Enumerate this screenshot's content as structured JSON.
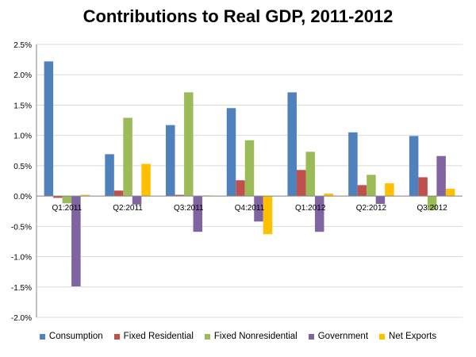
{
  "chart_data": {
    "type": "bar",
    "title": "Contributions to Real GDP, 2011-2012",
    "categories": [
      "Q1:2011",
      "Q2:2011",
      "Q3:2011",
      "Q4:2011",
      "Q1:2012",
      "Q2:2012",
      "Q3:2012"
    ],
    "series": [
      {
        "name": "Consumption",
        "color": "#4F81BD",
        "values": [
          2.22,
          0.69,
          1.17,
          1.45,
          1.71,
          1.05,
          0.99
        ]
      },
      {
        "name": "Fixed Residential",
        "color": "#C0504D",
        "values": [
          -0.03,
          0.09,
          0.02,
          0.26,
          0.43,
          0.18,
          0.31
        ]
      },
      {
        "name": "Fixed Nonresidential",
        "color": "#9BBB59",
        "values": [
          -0.12,
          1.29,
          1.71,
          0.92,
          0.73,
          0.35,
          -0.23
        ]
      },
      {
        "name": "Government",
        "color": "#8064A2",
        "values": [
          -1.49,
          -0.14,
          -0.59,
          -0.42,
          -0.59,
          -0.13,
          0.66
        ]
      },
      {
        "name": "Net Exports",
        "color": "#FFC000",
        "values": [
          0.02,
          0.53,
          0.01,
          -0.63,
          0.04,
          0.21,
          0.12
        ]
      }
    ],
    "ylim": [
      -2.0,
      2.5
    ],
    "yticks": [
      2.5,
      2.0,
      1.5,
      1.0,
      0.5,
      0.0,
      -0.5,
      -1.0,
      -1.5,
      -2.0
    ],
    "ytick_labels": [
      "2.5%",
      "2.0%",
      "1.5%",
      "1.0%",
      "0.5%",
      "0.0%",
      "-0.5%",
      "-1.0%",
      "-1.5%",
      "-2.0%"
    ],
    "grid": true,
    "legend": "bottom"
  }
}
